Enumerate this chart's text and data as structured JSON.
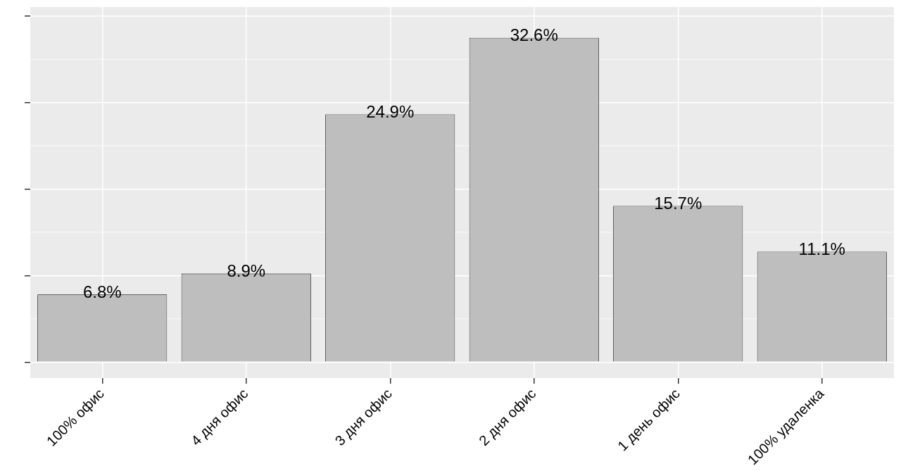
{
  "chart_data": {
    "type": "bar",
    "categories": [
      "100% офис",
      "4 дня офис",
      "3 дня офис",
      "2 дня офис",
      "1 день офис",
      "100% удаленка"
    ],
    "values": [
      6.8,
      8.9,
      24.9,
      32.6,
      15.7,
      11.1
    ],
    "value_labels": [
      "6.8%",
      "8.9%",
      "24.9%",
      "32.6%",
      "15.7%",
      "11.1%"
    ],
    "color": "#bebebe",
    "ylim": [
      -1.6,
      35.7
    ],
    "yticks": [
      {
        "value": 0,
        "label": null
      },
      {
        "value": 8.7,
        "label": null
      },
      {
        "value": 17.4,
        "label": null
      },
      {
        "value": 26.1,
        "label": null
      },
      {
        "value": 34.8,
        "label": null
      }
    ],
    "tick_labels": "x",
    "grid": true,
    "legend": false
  }
}
